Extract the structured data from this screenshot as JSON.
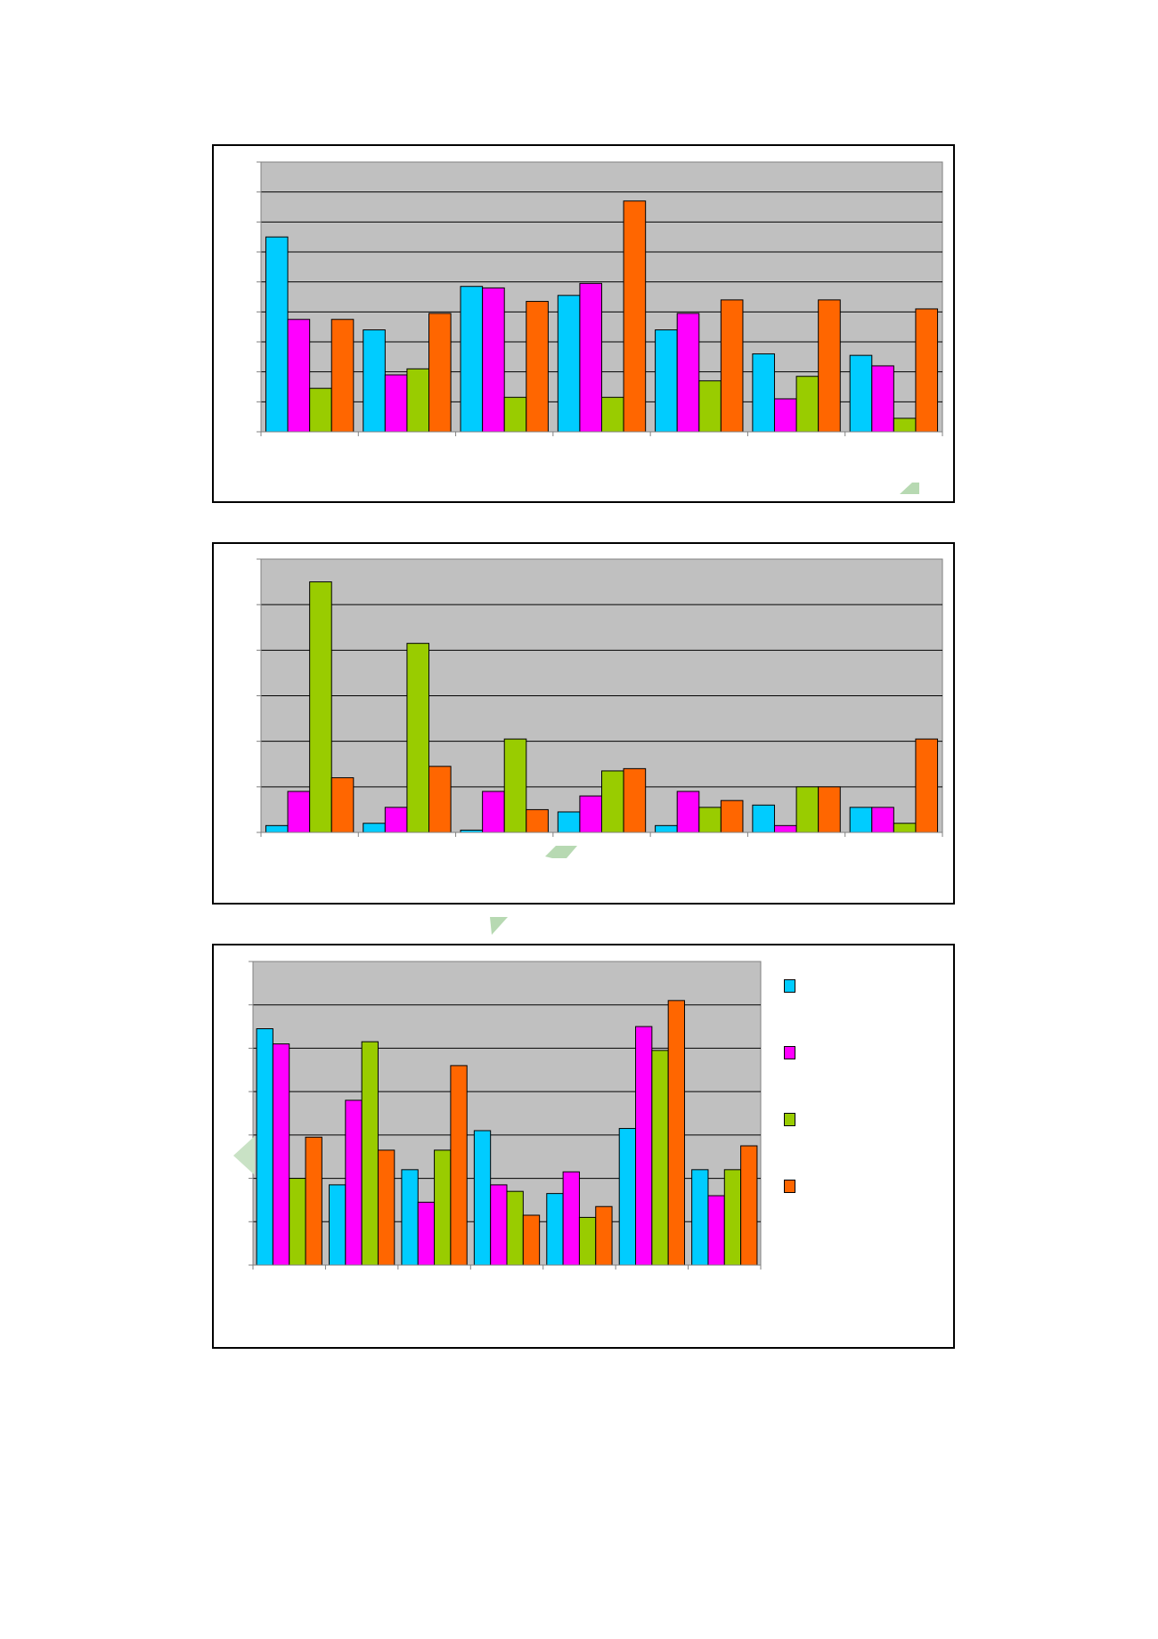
{
  "colors": {
    "plot_bg": "#c0c0c0",
    "grid": "#000000",
    "series": [
      "#00ccff",
      "#ff00ff",
      "#99cc00",
      "#ff6600"
    ]
  },
  "chart_data": [
    {
      "type": "bar",
      "categories": [
        "",
        "",
        "",
        "",
        "",
        "",
        ""
      ],
      "ylim": [
        0,
        9
      ],
      "grid": true,
      "series": [
        {
          "values": [
            6.5,
            3.4,
            4.85,
            4.55,
            3.4,
            2.6,
            2.55
          ]
        },
        {
          "values": [
            3.75,
            1.9,
            4.8,
            4.95,
            3.95,
            1.1,
            2.2
          ]
        },
        {
          "values": [
            1.45,
            2.1,
            1.15,
            1.15,
            1.7,
            1.85,
            0.45
          ]
        },
        {
          "values": [
            3.75,
            3.95,
            4.35,
            7.7,
            4.4,
            4.4,
            4.1
          ]
        }
      ]
    },
    {
      "type": "bar",
      "categories": [
        "",
        "",
        "",
        "",
        "",
        "",
        ""
      ],
      "ylim": [
        0,
        6
      ],
      "grid": true,
      "series": [
        {
          "values": [
            0.15,
            0.2,
            0.05,
            0.45,
            0.15,
            0.6,
            0.55
          ]
        },
        {
          "values": [
            0.9,
            0.55,
            0.9,
            0.8,
            0.9,
            0.15,
            0.55
          ]
        },
        {
          "values": [
            5.5,
            4.15,
            2.05,
            1.35,
            0.55,
            1.0,
            0.2
          ]
        },
        {
          "values": [
            1.2,
            1.45,
            0.5,
            1.4,
            0.7,
            1.0,
            2.05
          ]
        }
      ]
    },
    {
      "type": "bar",
      "categories": [
        "",
        "",
        "",
        "",
        "",
        "",
        ""
      ],
      "ylim": [
        0,
        7
      ],
      "grid": true,
      "legend": "right",
      "series": [
        {
          "values": [
            5.45,
            1.85,
            2.2,
            3.1,
            1.65,
            3.15,
            2.2
          ]
        },
        {
          "values": [
            5.1,
            3.8,
            1.45,
            1.85,
            2.15,
            5.5,
            1.6
          ]
        },
        {
          "values": [
            2.0,
            5.15,
            2.65,
            1.7,
            1.1,
            4.95,
            2.2
          ]
        },
        {
          "values": [
            2.95,
            2.65,
            4.6,
            1.15,
            1.35,
            6.1,
            2.75
          ]
        }
      ]
    }
  ]
}
